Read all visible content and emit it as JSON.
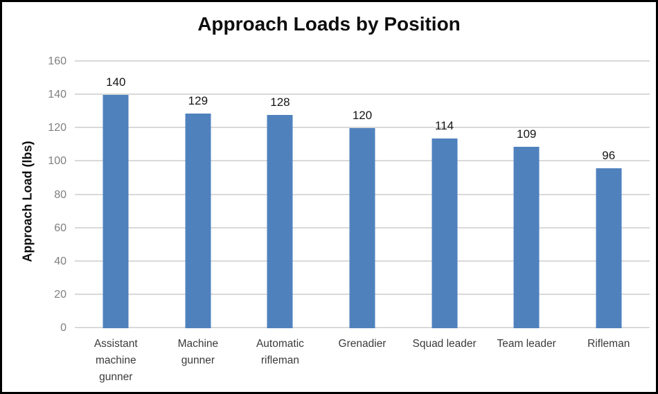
{
  "chart_data": {
    "type": "bar",
    "title": "Approach Loads by Position",
    "xlabel": "",
    "ylabel": "Approach Load (lbs)",
    "categories": [
      "Assistant machine gunner",
      "Machine gunner",
      "Automatic rifleman",
      "Grenadier",
      "Squad leader",
      "Team leader",
      "Rifleman"
    ],
    "values": [
      140,
      129,
      128,
      120,
      114,
      109,
      96
    ],
    "yticks": [
      0,
      20,
      40,
      60,
      80,
      100,
      120,
      140,
      160
    ],
    "ylim": [
      0,
      160
    ],
    "grid": "horizontal",
    "legend": "none",
    "data_labels": "above bars",
    "colors": {
      "bar_fill": "#4f81bd",
      "gridline": "#d9d9d9",
      "tick_label": "#7f7f7f",
      "category_label": "#3a3a3a",
      "value_label": "#141414",
      "title": "#0d0d0d",
      "frame_border": "#000000",
      "background": "#ffffff"
    }
  }
}
